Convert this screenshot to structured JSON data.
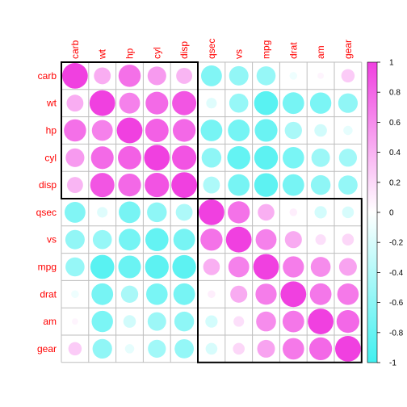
{
  "chart_data": {
    "type": "heatmap",
    "style": "circle",
    "variables": [
      "carb",
      "wt",
      "hp",
      "cyl",
      "disp",
      "qsec",
      "vs",
      "mpg",
      "drat",
      "am",
      "gear"
    ],
    "matrix": [
      [
        1.0,
        0.43,
        0.75,
        0.53,
        0.39,
        -0.66,
        -0.57,
        -0.55,
        -0.09,
        0.06,
        0.27
      ],
      [
        0.43,
        1.0,
        0.66,
        0.78,
        0.89,
        -0.17,
        -0.55,
        -0.87,
        -0.71,
        -0.69,
        -0.58
      ],
      [
        0.75,
        0.66,
        1.0,
        0.83,
        0.79,
        -0.71,
        -0.72,
        -0.78,
        -0.45,
        -0.24,
        -0.13
      ],
      [
        0.53,
        0.78,
        0.83,
        1.0,
        0.9,
        -0.59,
        -0.81,
        -0.85,
        -0.7,
        -0.52,
        -0.49
      ],
      [
        0.39,
        0.89,
        0.79,
        0.9,
        1.0,
        -0.43,
        -0.71,
        -0.85,
        -0.71,
        -0.59,
        -0.56
      ],
      [
        -0.66,
        -0.17,
        -0.71,
        -0.59,
        -0.43,
        1.0,
        0.74,
        0.42,
        0.09,
        -0.23,
        -0.21
      ],
      [
        -0.57,
        -0.55,
        -0.72,
        -0.81,
        -0.71,
        0.74,
        1.0,
        0.66,
        0.44,
        0.17,
        0.21
      ],
      [
        -0.55,
        -0.87,
        -0.78,
        -0.85,
        -0.85,
        0.42,
        0.66,
        1.0,
        0.68,
        0.6,
        0.48
      ],
      [
        -0.09,
        -0.71,
        -0.45,
        -0.7,
        -0.71,
        0.09,
        0.44,
        0.68,
        1.0,
        0.71,
        0.7
      ],
      [
        0.06,
        -0.69,
        -0.24,
        -0.52,
        -0.59,
        -0.23,
        0.17,
        0.6,
        0.71,
        1.0,
        0.79
      ],
      [
        0.27,
        -0.58,
        -0.13,
        -0.49,
        -0.56,
        -0.21,
        0.21,
        0.48,
        0.7,
        0.79,
        1.0
      ]
    ],
    "clusters": [
      [
        0,
        4
      ],
      [
        5,
        10
      ]
    ],
    "colorbar": {
      "range": [
        -1,
        1
      ],
      "ticks": [
        "-1",
        "-0.8",
        "-0.6",
        "-0.4",
        "-0.2",
        "0",
        "0.2",
        "0.4",
        "0.6",
        "0.8",
        "1"
      ],
      "low_color": "#40f0f0",
      "mid_color": "#ffffff",
      "high_color": "#f040e0"
    },
    "grid": true,
    "legend_placement": "right",
    "label_color": "#ff0000"
  }
}
